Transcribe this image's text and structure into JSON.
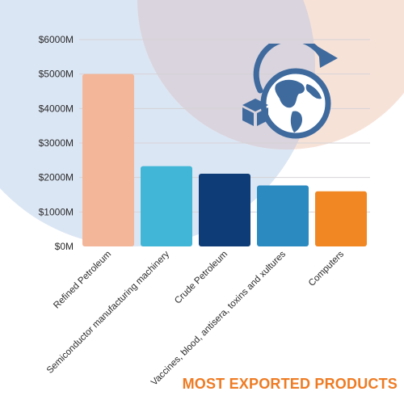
{
  "colors": {
    "background_blue": "#dbe6f4",
    "background_peach": "#f7e2d8",
    "background_overlap": "#d9d4dd",
    "gridline": "#d6d2d6",
    "axis_text": "#2b2b2b",
    "title": "#ee7b23",
    "icon": "#3e6a9e"
  },
  "icons": [
    "globe-icon",
    "box-icon",
    "arrow-icon"
  ],
  "chart_data": {
    "type": "bar",
    "title": "MOST EXPORTED PRODUCTS",
    "xlabel": "",
    "ylabel": "",
    "ylim": [
      0,
      6000
    ],
    "grid": true,
    "yticks": [
      "$0M",
      "$1000M",
      "$2000M",
      "$3000M",
      "$4000M",
      "$5000M",
      "$6000M"
    ],
    "categories": [
      "Refined Petroleum",
      "Semiconductor manufacturing machinery",
      "Crude Petroleum",
      "Vaccines, blood, antisera, toxins and xultures",
      "Computers"
    ],
    "values": [
      5000,
      2330,
      2110,
      1770,
      1600
    ],
    "bar_colors": [
      "#f3b698",
      "#42b6d6",
      "#0d3c77",
      "#2b8bc1",
      "#f18723"
    ]
  }
}
